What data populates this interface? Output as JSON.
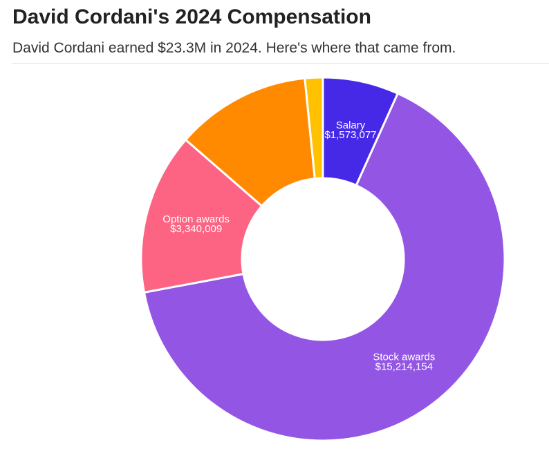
{
  "chart_data": {
    "type": "donut",
    "title": "David Cordani's 2024 Compensation",
    "subtitle": "David Cordani earned $23.3M in 2024. Here's where that came from.",
    "categories": [
      "Salary",
      "Stock awards",
      "Option awards",
      null,
      null
    ],
    "values": [
      1573077,
      15214154,
      3340009,
      2800000,
      370000
    ],
    "value_labels": [
      "$1,573,077",
      "$15,214,154",
      "$3,340,009",
      null,
      null
    ],
    "colors": [
      "#4529e6",
      "#9355e3",
      "#fd6383",
      "#ff8a00",
      "#ffc100"
    ]
  }
}
